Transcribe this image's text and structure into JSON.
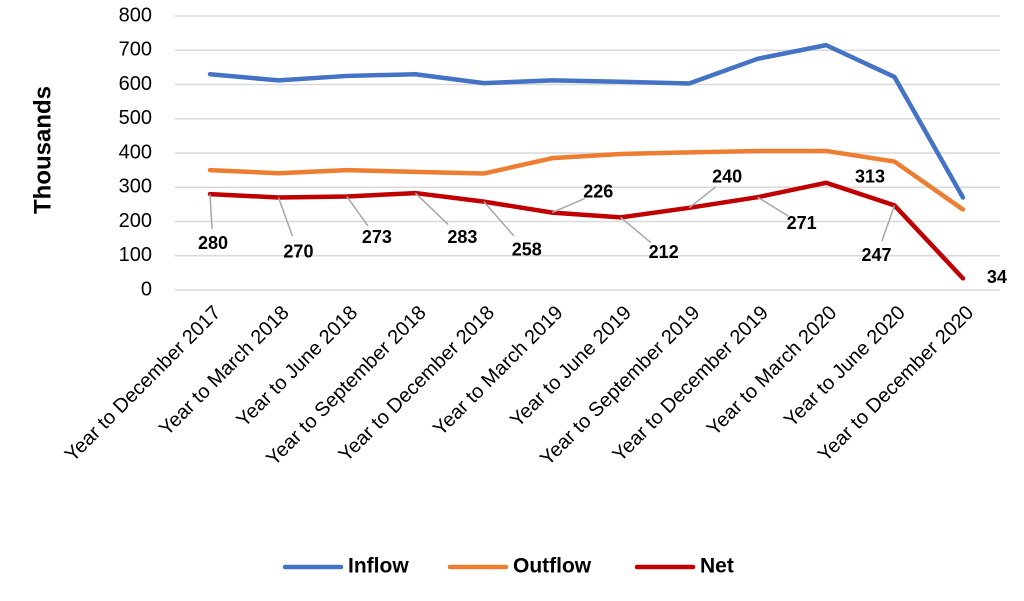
{
  "chart_data": {
    "type": "line",
    "y_label": "Thousands",
    "categories": [
      "Year to December 2017",
      "Year to March 2018",
      "Year to June 2018",
      "Year to September 2018",
      "Year to December 2018",
      "Year to March 2019",
      "Year to June 2019",
      "Year to September 2019",
      "Year to December 2019",
      "Year to March 2020",
      "Year to June 2020",
      "Year to December 2020"
    ],
    "series": [
      {
        "name": "Inflow",
        "color": "#4472c4",
        "values": [
          630,
          612,
          625,
          630,
          604,
          612,
          608,
          603,
          675,
          715,
          622,
          270
        ]
      },
      {
        "name": "Outflow",
        "color": "#ed7d31",
        "values": [
          350,
          341,
          350,
          345,
          340,
          385,
          397,
          402,
          406,
          406,
          375,
          235
        ]
      },
      {
        "name": "Net",
        "color": "#c00000",
        "values": [
          280,
          270,
          273,
          283,
          258,
          226,
          212,
          240,
          271,
          313,
          247,
          34
        ],
        "data_labels": true
      }
    ],
    "ylim": [
      0,
      800
    ],
    "yticks": [
      0,
      100,
      200,
      300,
      400,
      500,
      600,
      700,
      800
    ],
    "grid": true,
    "legend": "bottom"
  }
}
